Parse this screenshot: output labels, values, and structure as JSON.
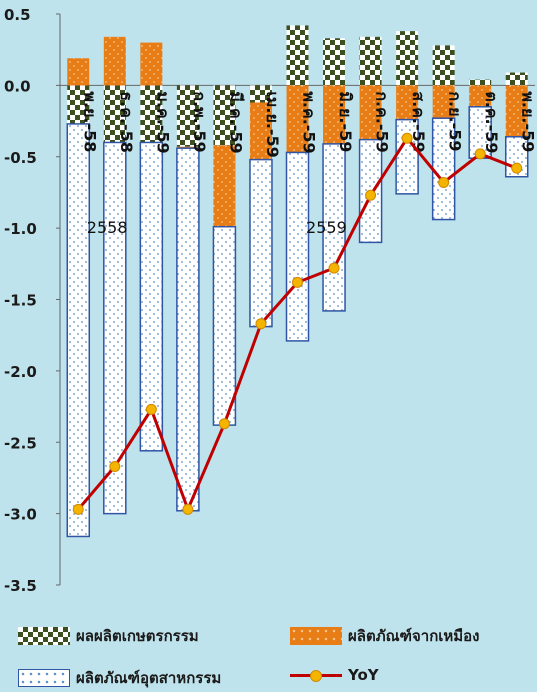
{
  "chart_data": {
    "type": "bar",
    "categories": [
      "พ.ย.-58",
      "ธ.ค.-58",
      "ม.ค.-59",
      "ก.พ.-59",
      "มี.ค.-59",
      "เม.ย.-59",
      "พ.ค.-59",
      "มิ.ย.-59",
      "ก.ค.-59",
      "ส.ค.-59",
      "ก.ย.-59",
      "ต.ค.-59",
      "พ.ย.-59"
    ],
    "year_labels": [
      {
        "text": "2558",
        "category_index": 1
      },
      {
        "text": "2559",
        "category_index": 7
      }
    ],
    "ylim": [
      -3.5,
      0.5
    ],
    "yticks": [
      "0.5",
      "0.0",
      "-0.5",
      "-1.0",
      "-1.5",
      "-2.0",
      "-2.5",
      "-3.0",
      "-3.5"
    ],
    "grid": false,
    "series": [
      {
        "name": "ผลผลิตเกษตรกรรม",
        "kind": "stacked-bar",
        "pattern": "checker",
        "values": [
          -0.27,
          -0.4,
          -0.4,
          -0.43,
          -0.42,
          -0.12,
          0.42,
          0.33,
          0.34,
          0.38,
          0.28,
          0.04,
          0.09
        ]
      },
      {
        "name": "ผลิตภัณฑ์จากเหมือง",
        "kind": "stacked-bar",
        "pattern": "orange-dots",
        "values": [
          0.19,
          0.34,
          0.3,
          -0.01,
          -0.57,
          -0.4,
          -0.47,
          -0.41,
          -0.38,
          -0.24,
          -0.23,
          -0.15,
          -0.36
        ]
      },
      {
        "name": "ผลิตภัณฑ์อุตสาหกรรม",
        "kind": "stacked-bar",
        "pattern": "white-dots",
        "values": [
          -2.89,
          -2.6,
          -2.16,
          -2.54,
          -1.39,
          -1.17,
          -1.32,
          -1.17,
          -0.72,
          -0.52,
          -0.71,
          -0.36,
          -0.28
        ]
      },
      {
        "name": "YoY",
        "kind": "line",
        "values": [
          -2.97,
          -2.67,
          -2.27,
          -2.97,
          -2.37,
          -1.67,
          -1.38,
          -1.28,
          -0.77,
          -0.37,
          -0.68,
          -0.48,
          -0.58
        ]
      }
    ]
  },
  "colors": {
    "background": "#bfe3ec",
    "checker_dark": "#3b4f1f",
    "checker_light": "#ffffff",
    "orange": "#e87d16",
    "industry_border": "#2f55a4",
    "line": "#c00000",
    "marker": "#f4b400"
  },
  "legend": {
    "agri": "ผลผลิตเกษตรกรรม",
    "mining": "ผลิตภัณฑ์จากเหมือง",
    "industry": "ผลิตภัณฑ์อุตสาหกรรม",
    "yoy": "YoY"
  }
}
